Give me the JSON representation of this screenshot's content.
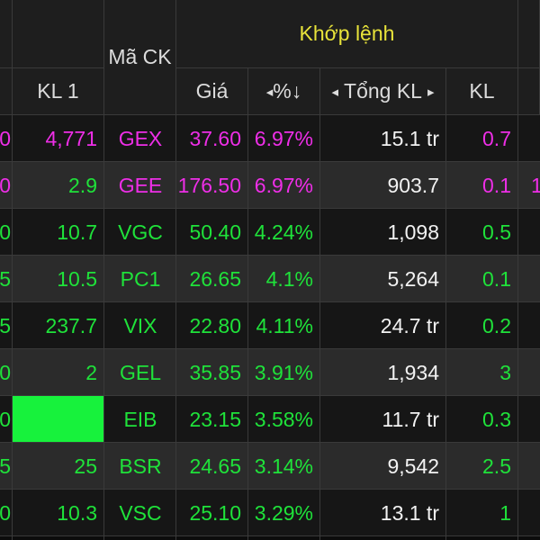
{
  "header": {
    "group_title": "Khớp lệnh",
    "col_kl1": "KL 1",
    "col_ma_ck": "Mã CK",
    "col_gia": "Giá",
    "col_pct": "%",
    "col_pct_sort": "↓",
    "col_tong_kl": "Tổng KL",
    "col_kl": "KL",
    "left_arrow": "◂",
    "right_arrow": "▸"
  },
  "colors": {
    "up": "#1fe23a",
    "ceiling": "#ee2ee7",
    "neutral": "#f2f2f2",
    "title": "#e8e33a"
  },
  "rows": [
    {
      "left": "0",
      "kl1": "4,771",
      "code": "GEX",
      "price": "37.60",
      "pct": "6.97%",
      "total": "15.1 tr",
      "kl": "0.7",
      "right": "",
      "color": "magenta",
      "kl1_color": "magenta"
    },
    {
      "left": "0",
      "kl1": "2.9",
      "code": "GEE",
      "price": "176.50",
      "pct": "6.97%",
      "total": "903.7",
      "kl": "0.1",
      "right": "1",
      "color": "magenta",
      "kl1_color": "green"
    },
    {
      "left": "0",
      "kl1": "10.7",
      "code": "VGC",
      "price": "50.40",
      "pct": "4.24%",
      "total": "1,098",
      "kl": "0.5",
      "right": "",
      "color": "green",
      "kl1_color": "green"
    },
    {
      "left": "5",
      "kl1": "10.5",
      "code": "PC1",
      "price": "26.65",
      "pct": "4.1%",
      "total": "5,264",
      "kl": "0.1",
      "right": "",
      "color": "green",
      "kl1_color": "green"
    },
    {
      "left": "5",
      "kl1": "237.7",
      "code": "VIX",
      "price": "22.80",
      "pct": "4.11%",
      "total": "24.7 tr",
      "kl": "0.2",
      "right": "",
      "color": "green",
      "kl1_color": "green"
    },
    {
      "left": "0",
      "kl1": "2",
      "code": "GEL",
      "price": "35.85",
      "pct": "3.91%",
      "total": "1,934",
      "kl": "3",
      "right": "",
      "color": "green",
      "kl1_color": "green"
    },
    {
      "left": "0",
      "kl1": "",
      "code": "EIB",
      "price": "23.15",
      "pct": "3.58%",
      "total": "11.7 tr",
      "kl": "0.3",
      "right": "",
      "color": "green",
      "kl1_color": "green",
      "highlight": true
    },
    {
      "left": "5",
      "kl1": "25",
      "code": "BSR",
      "price": "24.65",
      "pct": "3.14%",
      "total": "9,542",
      "kl": "2.5",
      "right": "",
      "color": "green",
      "kl1_color": "green"
    },
    {
      "left": "0",
      "kl1": "10.3",
      "code": "VSC",
      "price": "25.10",
      "pct": "3.29%",
      "total": "13.1 tr",
      "kl": "1",
      "right": "",
      "color": "green",
      "kl1_color": "green"
    }
  ]
}
